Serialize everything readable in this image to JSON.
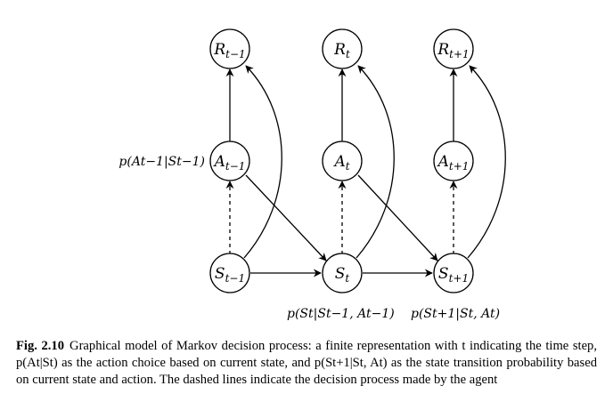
{
  "nodes": {
    "r_prev": {
      "base": "R",
      "sub": "t−1"
    },
    "r_cur": {
      "base": "R",
      "sub": "t"
    },
    "r_next": {
      "base": "R",
      "sub": "t+1"
    },
    "a_prev": {
      "base": "A",
      "sub": "t−1"
    },
    "a_cur": {
      "base": "A",
      "sub": "t"
    },
    "a_next": {
      "base": "A",
      "sub": "t+1"
    },
    "s_prev": {
      "base": "S",
      "sub": "t−1"
    },
    "s_cur": {
      "base": "S",
      "sub": "t"
    },
    "s_next": {
      "base": "S",
      "sub": "t+1"
    }
  },
  "labels": {
    "policy": "p(At−1|St−1)",
    "transition_cur": "p(St|St−1, At−1)",
    "transition_next": "p(St+1|St, At)"
  },
  "caption": {
    "label": "Fig. 2.10",
    "text": "Graphical model of Markov decision process: a finite representation with t indicating the time step, p(At|St) as the action choice based on current state, and p(St+1|St, At) as the state transition probability based on current state and action. The dashed lines indicate the decision process made by the agent"
  }
}
